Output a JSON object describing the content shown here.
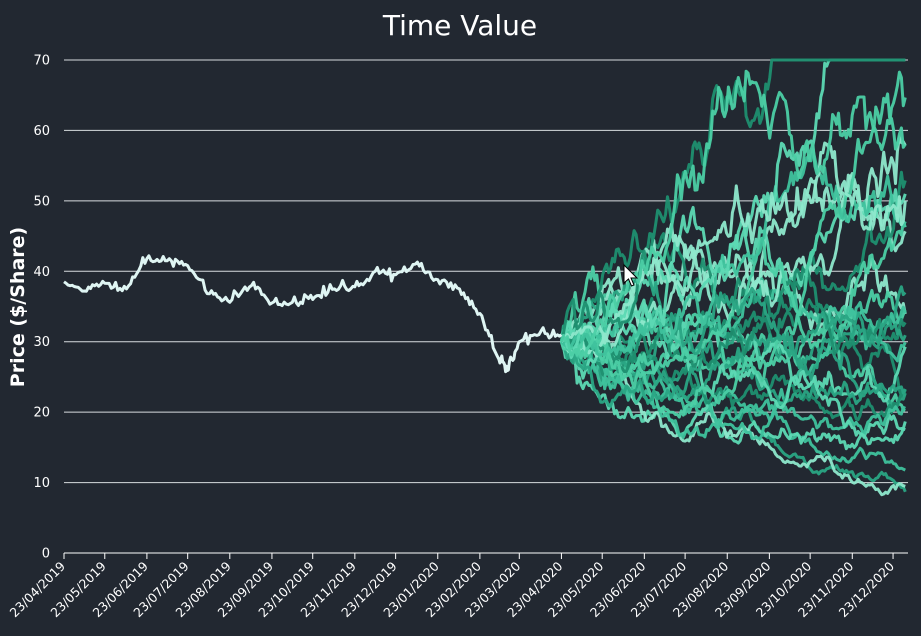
{
  "chart_data": {
    "type": "line",
    "title": "Time Value",
    "xlabel": "",
    "ylabel": "Price ($/Share)",
    "ylim": [
      0,
      70
    ],
    "yticks": [
      0,
      10,
      20,
      30,
      40,
      50,
      60,
      70
    ],
    "xlim": [
      "2019-04-23",
      "2021-01-03"
    ],
    "x_tick_labels": [
      "23/04/2019",
      "23/05/2019",
      "23/06/2019",
      "23/07/2019",
      "23/08/2019",
      "23/09/2019",
      "23/10/2019",
      "23/11/2019",
      "23/12/2019",
      "23/01/2020",
      "23/02/2020",
      "23/03/2020",
      "23/04/2020",
      "23/05/2020",
      "23/06/2020",
      "23/07/2020",
      "23/08/2020",
      "23/09/2020",
      "23/10/2020",
      "23/11/2020",
      "23/12/2020"
    ],
    "x_tick_dates": [
      "2019-04-23",
      "2019-05-23",
      "2019-06-23",
      "2019-07-23",
      "2019-08-23",
      "2019-09-23",
      "2019-10-23",
      "2019-11-23",
      "2019-12-23",
      "2020-01-23",
      "2020-02-23",
      "2020-03-23",
      "2020-04-23",
      "2020-05-23",
      "2020-06-23",
      "2020-07-23",
      "2020-08-23",
      "2020-09-23",
      "2020-10-23",
      "2020-11-23",
      "2020-12-23"
    ],
    "grid": {
      "horizontal": true,
      "vertical": false
    },
    "historical": {
      "color": "#dff5f3",
      "x": [
        "2019-04-23",
        "2019-05-08",
        "2019-05-23",
        "2019-06-08",
        "2019-06-23",
        "2019-07-08",
        "2019-07-23",
        "2019-08-08",
        "2019-08-23",
        "2019-09-08",
        "2019-09-23",
        "2019-10-08",
        "2019-10-23",
        "2019-11-08",
        "2019-11-23",
        "2019-12-08",
        "2019-12-23",
        "2020-01-08",
        "2020-01-23",
        "2020-02-08",
        "2020-02-23",
        "2020-03-08",
        "2020-03-15",
        "2020-03-23",
        "2020-04-08",
        "2020-04-23"
      ],
      "y": [
        38.5,
        37.2,
        38.3,
        37.5,
        41.8,
        41.5,
        40.8,
        36.8,
        35.6,
        38.0,
        35.5,
        35.6,
        36.0,
        37.5,
        37.8,
        40.0,
        39.5,
        41.3,
        38.8,
        37.5,
        34.0,
        27.5,
        26.0,
        30.0,
        31.5,
        31.0
      ]
    },
    "simulation": {
      "start_date": "2020-04-23",
      "start_value": 30,
      "paths": 30,
      "colors": [
        "#2aa584",
        "#3fc29d",
        "#5dd9b4",
        "#8ee8cc",
        "#1f8f70",
        "#4ccfa5"
      ],
      "y_range_at_end": [
        9.5,
        70
      ],
      "end_date": "2021-01-01"
    }
  }
}
